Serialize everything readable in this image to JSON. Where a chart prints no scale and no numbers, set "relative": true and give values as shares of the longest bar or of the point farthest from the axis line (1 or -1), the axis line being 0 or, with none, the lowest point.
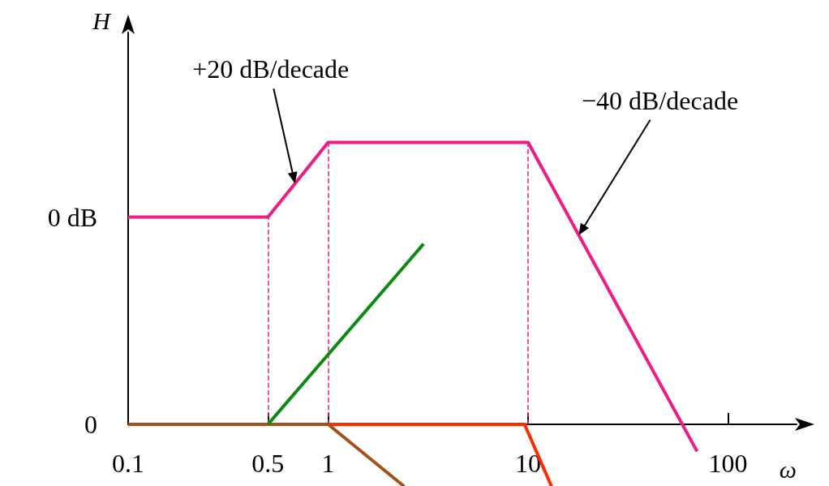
{
  "chart_data": {
    "type": "line",
    "xlabel": "ω",
    "ylabel": "H",
    "log": "x",
    "relative": true,
    "xlim": [
      0.1,
      220
    ],
    "xticks": [
      0.1,
      0.5,
      1,
      10,
      100
    ],
    "grid": false,
    "marker": "none",
    "line_style": "solid",
    "series": [
      {
        "color": "#ee1c87",
        "x": [
          0.1,
          0.5,
          1,
          10,
          70
        ],
        "values": [
          0.735,
          0.735,
          1,
          1,
          -0.096
        ]
      },
      {
        "color": "#0b8a12",
        "x": [
          0.5,
          3
        ],
        "values": [
          0,
          0.64
        ]
      },
      {
        "color": "#a3521c",
        "x": [
          0.1,
          1,
          2.4
        ],
        "values": [
          0,
          0,
          -0.22
        ]
      },
      {
        "color": "#ff2a00",
        "x": [
          1,
          9.6,
          13.1
        ],
        "values": [
          0,
          0,
          -0.22
        ]
      }
    ],
    "ref_lines": [
      {
        "axis": "x",
        "value": 0.5,
        "color": "#ee1c87",
        "line_style": "dashed"
      },
      {
        "axis": "x",
        "value": 1,
        "color": "#ee1c87",
        "line_style": "dashed"
      },
      {
        "axis": "x",
        "value": 10,
        "color": "#ee1c87",
        "line_style": "dashed"
      }
    ],
    "annotations": [
      "0 dB",
      "0",
      "+20 dB/decade",
      "−40 dB/decade"
    ]
  }
}
